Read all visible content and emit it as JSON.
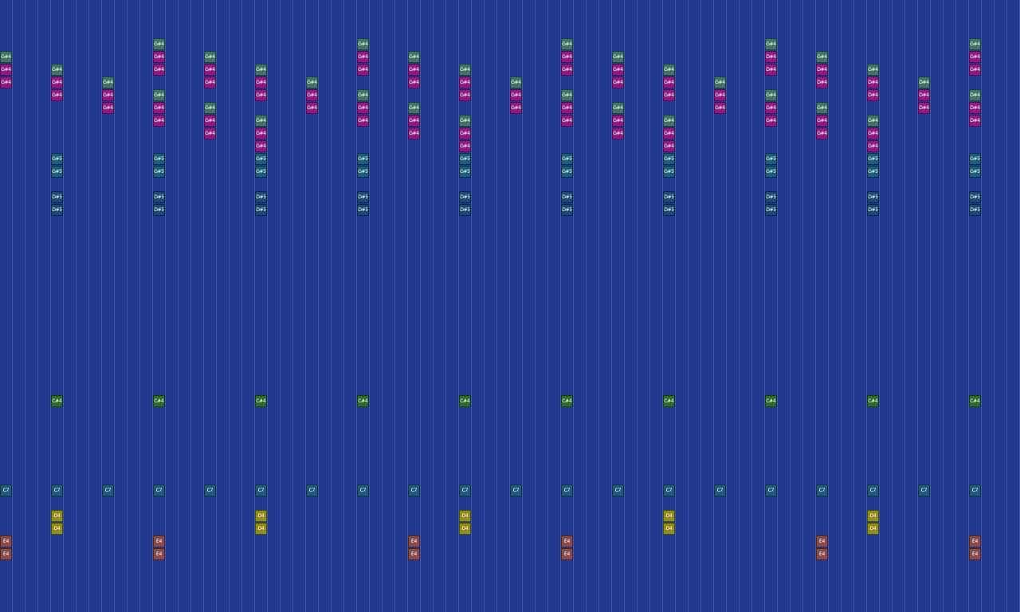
{
  "colors": {
    "background": "#21388e",
    "G#4_teal": "#3d7565",
    "G#4_magenta": "#8e1a82",
    "D#4_magenta": "#8e1a82",
    "G#5": "#1e5a7c",
    "D#5": "#1c4878",
    "C#4": "#2e6a2c",
    "C7": "#1f5a78",
    "D4": "#8f8e18",
    "E4": "#8a4a4c"
  },
  "notes": [
    {
      "label": "G#4",
      "col": 0,
      "row": 4,
      "color": "#3d7565"
    },
    {
      "label": "G#4",
      "col": 0,
      "row": 5,
      "color": "#8e1a82"
    },
    {
      "label": "G#4",
      "col": 0,
      "row": 6,
      "color": "#8e1a82"
    },
    {
      "label": "C7",
      "col": 0,
      "row": 38,
      "color": "#1f5a78"
    },
    {
      "label": "E4",
      "col": 0,
      "row": 42,
      "color": "#8a4a4c"
    },
    {
      "label": "E4",
      "col": 0,
      "row": 43,
      "color": "#8a4a4c"
    },
    {
      "label": "G#4",
      "col": 4,
      "row": 5,
      "color": "#3d7565"
    },
    {
      "label": "G#4",
      "col": 4,
      "row": 6,
      "color": "#8e1a82"
    },
    {
      "label": "G#4",
      "col": 4,
      "row": 7,
      "color": "#8e1a82"
    },
    {
      "label": "G#5",
      "col": 4,
      "row": 12,
      "color": "#1e5a7c"
    },
    {
      "label": "G#5",
      "col": 4,
      "row": 13,
      "color": "#1e5a7c"
    },
    {
      "label": "D#5",
      "col": 4,
      "row": 15,
      "color": "#1c4878"
    },
    {
      "label": "D#5",
      "col": 4,
      "row": 16,
      "color": "#1c4878"
    },
    {
      "label": "C#4",
      "col": 4,
      "row": 31,
      "color": "#2e6a2c"
    },
    {
      "label": "C7",
      "col": 4,
      "row": 38,
      "color": "#1f5a78"
    },
    {
      "label": "D4",
      "col": 4,
      "row": 40,
      "color": "#8f8e18"
    },
    {
      "label": "D4",
      "col": 4,
      "row": 41,
      "color": "#8f8e18"
    },
    {
      "label": "G#4",
      "col": 8,
      "row": 6,
      "color": "#3d7565"
    },
    {
      "label": "G#4",
      "col": 8,
      "row": 7,
      "color": "#8e1a82"
    },
    {
      "label": "G#4",
      "col": 8,
      "row": 8,
      "color": "#8e1a82"
    },
    {
      "label": "C7",
      "col": 8,
      "row": 38,
      "color": "#1f5a78"
    },
    {
      "label": "G#4",
      "col": 12,
      "row": 3,
      "color": "#3d7565"
    },
    {
      "label": "G#4",
      "col": 12,
      "row": 4,
      "color": "#8e1a82"
    },
    {
      "label": "G#4",
      "col": 12,
      "row": 5,
      "color": "#8e1a82"
    },
    {
      "label": "G#4",
      "col": 12,
      "row": 7,
      "color": "#3d7565"
    },
    {
      "label": "G#4",
      "col": 12,
      "row": 8,
      "color": "#8e1a82"
    },
    {
      "label": "G#4",
      "col": 12,
      "row": 9,
      "color": "#8e1a82"
    },
    {
      "label": "G#5",
      "col": 12,
      "row": 12,
      "color": "#1e5a7c"
    },
    {
      "label": "G#5",
      "col": 12,
      "row": 13,
      "color": "#1e5a7c"
    },
    {
      "label": "D#5",
      "col": 12,
      "row": 15,
      "color": "#1c4878"
    },
    {
      "label": "D#5",
      "col": 12,
      "row": 16,
      "color": "#1c4878"
    },
    {
      "label": "C#4",
      "col": 12,
      "row": 31,
      "color": "#2e6a2c"
    },
    {
      "label": "C7",
      "col": 12,
      "row": 38,
      "color": "#1f5a78"
    },
    {
      "label": "E4",
      "col": 12,
      "row": 42,
      "color": "#8a4a4c"
    },
    {
      "label": "E4",
      "col": 12,
      "row": 43,
      "color": "#8a4a4c"
    },
    {
      "label": "G#4",
      "col": 16,
      "row": 4,
      "color": "#3d7565"
    },
    {
      "label": "G#4",
      "col": 16,
      "row": 5,
      "color": "#8e1a82"
    },
    {
      "label": "G#4",
      "col": 16,
      "row": 6,
      "color": "#8e1a82"
    },
    {
      "label": "G#4",
      "col": 16,
      "row": 8,
      "color": "#3d7565"
    },
    {
      "label": "G#4",
      "col": 16,
      "row": 9,
      "color": "#8e1a82"
    },
    {
      "label": "G#4",
      "col": 16,
      "row": 10,
      "color": "#8e1a82"
    },
    {
      "label": "C7",
      "col": 16,
      "row": 38,
      "color": "#1f5a78"
    },
    {
      "label": "G#4",
      "col": 20,
      "row": 5,
      "color": "#3d7565"
    },
    {
      "label": "G#4",
      "col": 20,
      "row": 6,
      "color": "#8e1a82"
    },
    {
      "label": "G#4",
      "col": 20,
      "row": 7,
      "color": "#8e1a82"
    },
    {
      "label": "G#4",
      "col": 20,
      "row": 9,
      "color": "#3d7565"
    },
    {
      "label": "G#4",
      "col": 20,
      "row": 10,
      "color": "#8e1a82"
    },
    {
      "label": "G#4",
      "col": 20,
      "row": 11,
      "color": "#8e1a82"
    },
    {
      "label": "G#5",
      "col": 20,
      "row": 12,
      "color": "#1e5a7c"
    },
    {
      "label": "G#5",
      "col": 20,
      "row": 13,
      "color": "#1e5a7c"
    },
    {
      "label": "D#5",
      "col": 20,
      "row": 15,
      "color": "#1c4878"
    },
    {
      "label": "D#5",
      "col": 20,
      "row": 16,
      "color": "#1c4878"
    },
    {
      "label": "C#4",
      "col": 20,
      "row": 31,
      "color": "#2e6a2c"
    },
    {
      "label": "C7",
      "col": 20,
      "row": 38,
      "color": "#1f5a78"
    },
    {
      "label": "D4",
      "col": 20,
      "row": 40,
      "color": "#8f8e18"
    },
    {
      "label": "D4",
      "col": 20,
      "row": 41,
      "color": "#8f8e18"
    },
    {
      "label": "G#4",
      "col": 24,
      "row": 6,
      "color": "#3d7565"
    },
    {
      "label": "G#4",
      "col": 24,
      "row": 7,
      "color": "#8e1a82"
    },
    {
      "label": "G#4",
      "col": 24,
      "row": 8,
      "color": "#8e1a82"
    },
    {
      "label": "C7",
      "col": 24,
      "row": 38,
      "color": "#1f5a78"
    },
    {
      "label": "G#4",
      "col": 28,
      "row": 3,
      "color": "#3d7565"
    },
    {
      "label": "G#4",
      "col": 28,
      "row": 4,
      "color": "#8e1a82"
    },
    {
      "label": "G#4",
      "col": 28,
      "row": 5,
      "color": "#8e1a82"
    },
    {
      "label": "G#4",
      "col": 28,
      "row": 7,
      "color": "#3d7565"
    },
    {
      "label": "G#4",
      "col": 28,
      "row": 8,
      "color": "#8e1a82"
    },
    {
      "label": "G#4",
      "col": 28,
      "row": 9,
      "color": "#8e1a82"
    },
    {
      "label": "G#5",
      "col": 28,
      "row": 12,
      "color": "#1e5a7c"
    },
    {
      "label": "G#5",
      "col": 28,
      "row": 13,
      "color": "#1e5a7c"
    },
    {
      "label": "D#5",
      "col": 28,
      "row": 15,
      "color": "#1c4878"
    },
    {
      "label": "D#5",
      "col": 28,
      "row": 16,
      "color": "#1c4878"
    },
    {
      "label": "C#4",
      "col": 28,
      "row": 31,
      "color": "#2e6a2c"
    },
    {
      "label": "C7",
      "col": 28,
      "row": 38,
      "color": "#1f5a78"
    },
    {
      "label": "G#4",
      "col": 32,
      "row": 4,
      "color": "#3d7565"
    },
    {
      "label": "G#4",
      "col": 32,
      "row": 5,
      "color": "#8e1a82"
    },
    {
      "label": "G#4",
      "col": 32,
      "row": 6,
      "color": "#8e1a82"
    },
    {
      "label": "G#4",
      "col": 32,
      "row": 8,
      "color": "#3d7565"
    },
    {
      "label": "G#4",
      "col": 32,
      "row": 9,
      "color": "#8e1a82"
    },
    {
      "label": "G#4",
      "col": 32,
      "row": 10,
      "color": "#8e1a82"
    },
    {
      "label": "C7",
      "col": 32,
      "row": 38,
      "color": "#1f5a78"
    },
    {
      "label": "E4",
      "col": 32,
      "row": 42,
      "color": "#8a4a4c"
    },
    {
      "label": "E4",
      "col": 32,
      "row": 43,
      "color": "#8a4a4c"
    },
    {
      "label": "G#4",
      "col": 36,
      "row": 5,
      "color": "#3d7565"
    },
    {
      "label": "G#4",
      "col": 36,
      "row": 6,
      "color": "#8e1a82"
    },
    {
      "label": "G#4",
      "col": 36,
      "row": 7,
      "color": "#8e1a82"
    },
    {
      "label": "G#4",
      "col": 36,
      "row": 9,
      "color": "#3d7565"
    },
    {
      "label": "G#4",
      "col": 36,
      "row": 10,
      "color": "#8e1a82"
    },
    {
      "label": "G#4",
      "col": 36,
      "row": 11,
      "color": "#8e1a82"
    },
    {
      "label": "G#5",
      "col": 36,
      "row": 12,
      "color": "#1e5a7c"
    },
    {
      "label": "G#5",
      "col": 36,
      "row": 13,
      "color": "#1e5a7c"
    },
    {
      "label": "D#5",
      "col": 36,
      "row": 15,
      "color": "#1c4878"
    },
    {
      "label": "D#5",
      "col": 36,
      "row": 16,
      "color": "#1c4878"
    },
    {
      "label": "C#4",
      "col": 36,
      "row": 31,
      "color": "#2e6a2c"
    },
    {
      "label": "C7",
      "col": 36,
      "row": 38,
      "color": "#1f5a78"
    },
    {
      "label": "D4",
      "col": 36,
      "row": 40,
      "color": "#8f8e18"
    },
    {
      "label": "D4",
      "col": 36,
      "row": 41,
      "color": "#8f8e18"
    },
    {
      "label": "G#4",
      "col": 40,
      "row": 6,
      "color": "#3d7565"
    },
    {
      "label": "G#4",
      "col": 40,
      "row": 7,
      "color": "#8e1a82"
    },
    {
      "label": "G#4",
      "col": 40,
      "row": 8,
      "color": "#8e1a82"
    },
    {
      "label": "C7",
      "col": 40,
      "row": 38,
      "color": "#1f5a78"
    },
    {
      "label": "G#4",
      "col": 44,
      "row": 3,
      "color": "#3d7565"
    },
    {
      "label": "G#4",
      "col": 44,
      "row": 4,
      "color": "#8e1a82"
    },
    {
      "label": "G#4",
      "col": 44,
      "row": 5,
      "color": "#8e1a82"
    },
    {
      "label": "G#4",
      "col": 44,
      "row": 7,
      "color": "#3d7565"
    },
    {
      "label": "G#4",
      "col": 44,
      "row": 8,
      "color": "#8e1a82"
    },
    {
      "label": "G#4",
      "col": 44,
      "row": 9,
      "color": "#8e1a82"
    },
    {
      "label": "G#5",
      "col": 44,
      "row": 12,
      "color": "#1e5a7c"
    },
    {
      "label": "G#5",
      "col": 44,
      "row": 13,
      "color": "#1e5a7c"
    },
    {
      "label": "D#5",
      "col": 44,
      "row": 15,
      "color": "#1c4878"
    },
    {
      "label": "D#5",
      "col": 44,
      "row": 16,
      "color": "#1c4878"
    },
    {
      "label": "C#4",
      "col": 44,
      "row": 31,
      "color": "#2e6a2c"
    },
    {
      "label": "C7",
      "col": 44,
      "row": 38,
      "color": "#1f5a78"
    },
    {
      "label": "E4",
      "col": 44,
      "row": 42,
      "color": "#8a4a4c"
    },
    {
      "label": "E4",
      "col": 44,
      "row": 43,
      "color": "#8a4a4c"
    },
    {
      "label": "G#4",
      "col": 48,
      "row": 4,
      "color": "#3d7565"
    },
    {
      "label": "G#4",
      "col": 48,
      "row": 5,
      "color": "#8e1a82"
    },
    {
      "label": "G#4",
      "col": 48,
      "row": 6,
      "color": "#8e1a82"
    },
    {
      "label": "G#4",
      "col": 48,
      "row": 8,
      "color": "#3d7565"
    },
    {
      "label": "G#4",
      "col": 48,
      "row": 9,
      "color": "#8e1a82"
    },
    {
      "label": "G#4",
      "col": 48,
      "row": 10,
      "color": "#8e1a82"
    },
    {
      "label": "C7",
      "col": 48,
      "row": 38,
      "color": "#1f5a78"
    },
    {
      "label": "G#4",
      "col": 52,
      "row": 5,
      "color": "#3d7565"
    },
    {
      "label": "G#4",
      "col": 52,
      "row": 6,
      "color": "#8e1a82"
    },
    {
      "label": "G#4",
      "col": 52,
      "row": 7,
      "color": "#8e1a82"
    },
    {
      "label": "G#4",
      "col": 52,
      "row": 9,
      "color": "#3d7565"
    },
    {
      "label": "G#4",
      "col": 52,
      "row": 10,
      "color": "#8e1a82"
    },
    {
      "label": "G#4",
      "col": 52,
      "row": 11,
      "color": "#8e1a82"
    },
    {
      "label": "G#5",
      "col": 52,
      "row": 12,
      "color": "#1e5a7c"
    },
    {
      "label": "G#5",
      "col": 52,
      "row": 13,
      "color": "#1e5a7c"
    },
    {
      "label": "D#5",
      "col": 52,
      "row": 15,
      "color": "#1c4878"
    },
    {
      "label": "D#5",
      "col": 52,
      "row": 16,
      "color": "#1c4878"
    },
    {
      "label": "C#4",
      "col": 52,
      "row": 31,
      "color": "#2e6a2c"
    },
    {
      "label": "C7",
      "col": 52,
      "row": 38,
      "color": "#1f5a78"
    },
    {
      "label": "D4",
      "col": 52,
      "row": 40,
      "color": "#8f8e18"
    },
    {
      "label": "D4",
      "col": 52,
      "row": 41,
      "color": "#8f8e18"
    },
    {
      "label": "G#4",
      "col": 56,
      "row": 6,
      "color": "#3d7565"
    },
    {
      "label": "G#4",
      "col": 56,
      "row": 7,
      "color": "#8e1a82"
    },
    {
      "label": "G#4",
      "col": 56,
      "row": 8,
      "color": "#8e1a82"
    },
    {
      "label": "C7",
      "col": 56,
      "row": 38,
      "color": "#1f5a78"
    },
    {
      "label": "G#4",
      "col": 60,
      "row": 3,
      "color": "#3d7565"
    },
    {
      "label": "D#4",
      "col": 60,
      "row": 4,
      "color": "#8e1a82"
    },
    {
      "label": "D#4",
      "col": 60,
      "row": 5,
      "color": "#8e1a82"
    },
    {
      "label": "G#4",
      "col": 60,
      "row": 7,
      "color": "#3d7565"
    },
    {
      "label": "G#4",
      "col": 60,
      "row": 8,
      "color": "#8e1a82"
    },
    {
      "label": "G#4",
      "col": 60,
      "row": 9,
      "color": "#8e1a82"
    },
    {
      "label": "G#5",
      "col": 60,
      "row": 12,
      "color": "#1e5a7c"
    },
    {
      "label": "G#5",
      "col": 60,
      "row": 13,
      "color": "#1e5a7c"
    },
    {
      "label": "D#5",
      "col": 60,
      "row": 15,
      "color": "#1c4878"
    },
    {
      "label": "D#5",
      "col": 60,
      "row": 16,
      "color": "#1c4878"
    },
    {
      "label": "C#4",
      "col": 60,
      "row": 31,
      "color": "#2e6a2c"
    },
    {
      "label": "C7",
      "col": 60,
      "row": 38,
      "color": "#1f5a78"
    },
    {
      "label": "G#4",
      "col": 64,
      "row": 4,
      "color": "#3d7565"
    },
    {
      "label": "D#4",
      "col": 64,
      "row": 5,
      "color": "#8e1a82"
    },
    {
      "label": "D#4",
      "col": 64,
      "row": 6,
      "color": "#8e1a82"
    },
    {
      "label": "G#4",
      "col": 64,
      "row": 8,
      "color": "#3d7565"
    },
    {
      "label": "G#4",
      "col": 64,
      "row": 9,
      "color": "#8e1a82"
    },
    {
      "label": "G#4",
      "col": 64,
      "row": 10,
      "color": "#8e1a82"
    },
    {
      "label": "C7",
      "col": 64,
      "row": 38,
      "color": "#1f5a78"
    },
    {
      "label": "E4",
      "col": 64,
      "row": 42,
      "color": "#8a4a4c"
    },
    {
      "label": "E4",
      "col": 64,
      "row": 43,
      "color": "#8a4a4c"
    },
    {
      "label": "G#4",
      "col": 68,
      "row": 5,
      "color": "#3d7565"
    },
    {
      "label": "D#4",
      "col": 68,
      "row": 6,
      "color": "#8e1a82"
    },
    {
      "label": "D#4",
      "col": 68,
      "row": 7,
      "color": "#8e1a82"
    },
    {
      "label": "G#4",
      "col": 68,
      "row": 9,
      "color": "#3d7565"
    },
    {
      "label": "G#4",
      "col": 68,
      "row": 10,
      "color": "#8e1a82"
    },
    {
      "label": "G#4",
      "col": 68,
      "row": 11,
      "color": "#8e1a82"
    },
    {
      "label": "G#5",
      "col": 68,
      "row": 12,
      "color": "#1e5a7c"
    },
    {
      "label": "G#5",
      "col": 68,
      "row": 13,
      "color": "#1e5a7c"
    },
    {
      "label": "D#5",
      "col": 68,
      "row": 15,
      "color": "#1c4878"
    },
    {
      "label": "D#5",
      "col": 68,
      "row": 16,
      "color": "#1c4878"
    },
    {
      "label": "C#4",
      "col": 68,
      "row": 31,
      "color": "#2e6a2c"
    },
    {
      "label": "C7",
      "col": 68,
      "row": 38,
      "color": "#1f5a78"
    },
    {
      "label": "D4",
      "col": 68,
      "row": 40,
      "color": "#8f8e18"
    },
    {
      "label": "D4",
      "col": 68,
      "row": 41,
      "color": "#8f8e18"
    },
    {
      "label": "D#4",
      "col": 72,
      "row": 6,
      "color": "#3d7565"
    },
    {
      "label": "D#4",
      "col": 72,
      "row": 7,
      "color": "#8e1a82"
    },
    {
      "label": "D#4",
      "col": 72,
      "row": 8,
      "color": "#8e1a82"
    },
    {
      "label": "C7",
      "col": 72,
      "row": 38,
      "color": "#1f5a78"
    },
    {
      "label": "G#4",
      "col": 76,
      "row": 3,
      "color": "#3d7565"
    },
    {
      "label": "G#4",
      "col": 76,
      "row": 4,
      "color": "#8e1a82"
    },
    {
      "label": "G#4",
      "col": 76,
      "row": 5,
      "color": "#8e1a82"
    },
    {
      "label": "D#4",
      "col": 76,
      "row": 7,
      "color": "#3d7565"
    },
    {
      "label": "D#4",
      "col": 76,
      "row": 8,
      "color": "#8e1a82"
    },
    {
      "label": "D#4",
      "col": 76,
      "row": 9,
      "color": "#8e1a82"
    },
    {
      "label": "G#5",
      "col": 76,
      "row": 12,
      "color": "#1e5a7c"
    },
    {
      "label": "G#5",
      "col": 76,
      "row": 13,
      "color": "#1e5a7c"
    },
    {
      "label": "D#5",
      "col": 76,
      "row": 15,
      "color": "#1c4878"
    },
    {
      "label": "D#5",
      "col": 76,
      "row": 16,
      "color": "#1c4878"
    },
    {
      "label": "C#4",
      "col": 76,
      "row": 31,
      "color": "#2e6a2c"
    },
    {
      "label": "C7",
      "col": 76,
      "row": 38,
      "color": "#1f5a78"
    },
    {
      "label": "E4",
      "col": 76,
      "row": 42,
      "color": "#8a4a4c"
    },
    {
      "label": "E4",
      "col": 76,
      "row": 43,
      "color": "#8a4a4c"
    }
  ]
}
